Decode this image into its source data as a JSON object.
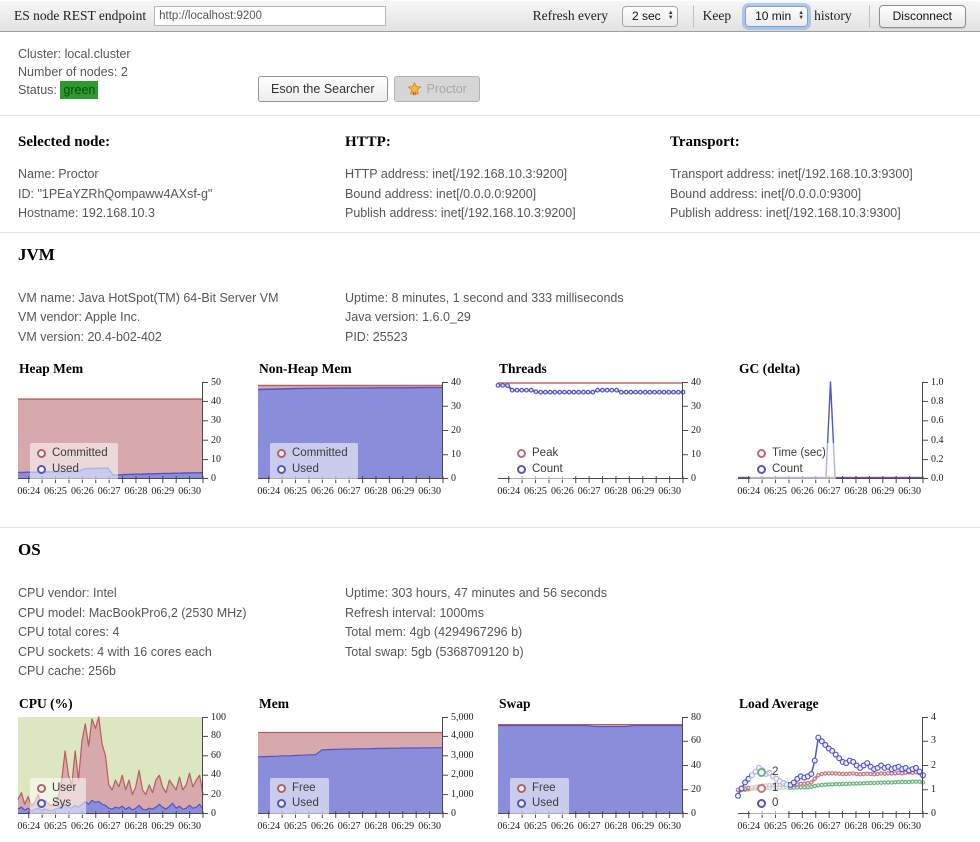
{
  "toolbar": {
    "endpoint_label": "ES node REST endpoint",
    "endpoint_value": "http://localhost:9200",
    "refresh_label": "Refresh every",
    "refresh_value": "2 sec",
    "keep_label": "Keep",
    "keep_value": "10 min",
    "history_label": "history",
    "disconnect_label": "Disconnect"
  },
  "cluster": {
    "cluster_label": "Cluster:",
    "cluster_value": "local.cluster",
    "nodes_label": "Number of nodes:",
    "nodes_value": "2",
    "status_label": "Status:",
    "status_value": "green",
    "status_color": "#2c9a2c"
  },
  "nodes": [
    {
      "label": "Eson the Searcher",
      "selected": false
    },
    {
      "label": "Proctor",
      "selected": true
    }
  ],
  "selected_node": {
    "heading": "Selected node:",
    "lines": [
      "Name: Proctor",
      "ID: \"1PEaYZRhQompaww4AXsf-g\"",
      "Hostname: 192.168.10.3"
    ]
  },
  "http": {
    "heading": "HTTP:",
    "lines": [
      "HTTP address: inet[/192.168.10.3:9200]",
      "Bound address: inet[/0.0.0.0:9200]",
      "Publish address: inet[/192.168.10.3:9200]"
    ]
  },
  "transport": {
    "heading": "Transport:",
    "lines": [
      "Transport address: inet[/192.168.10.3:9300]",
      "Bound address: inet[/0.0.0.0:9300]",
      "Publish address: inet[/192.168.10.3:9300]"
    ]
  },
  "jvm": {
    "heading": "JVM",
    "col1": [
      "VM name: Java HotSpot(TM) 64-Bit Server VM",
      "VM vendor: Apple Inc.",
      "VM version: 20.4-b02-402"
    ],
    "col2": [
      "Uptime: 8 minutes, 1 second and 333 milliseconds",
      "Java version: 1.6.0_29",
      "PID: 25523"
    ]
  },
  "os": {
    "heading": "OS",
    "col1": [
      "CPU vendor: Intel",
      "CPU model: MacBookPro6,2 (2530 MHz)",
      "CPU total cores: 4",
      "CPU sockets: 4 with 16 cores each",
      "CPU cache: 256b"
    ],
    "col2": [
      "Uptime: 303 hours, 47 minutes and 56 seconds",
      "Refresh interval: 1000ms",
      "Total mem: 4gb (4294967296 b)",
      "Total swap: 5gb (5368709120 b)"
    ]
  },
  "chart_data": [
    {
      "id": "heap_mem",
      "title": "Heap Mem",
      "type": "area",
      "ylim": [
        0,
        50
      ],
      "ytick_labels": [
        "0",
        "10",
        "20",
        "30",
        "40",
        "50"
      ],
      "label_clip": 24,
      "x_labels": [
        "06:24",
        "06:25",
        "06:26",
        "06:27",
        "06:28",
        "06:29",
        "06:30"
      ],
      "legend_pos": "bottom-left",
      "grid": false,
      "series": [
        {
          "name": "Committed",
          "color": "#b85c60",
          "fillColor": "#d8a9ac",
          "lw": 1.4,
          "values": [
            41.2,
            41.2
          ]
        },
        {
          "name": "Used",
          "color": "#5055c8",
          "fillColor": "#8a8eda",
          "lw": 1.4,
          "values": [
            3.4,
            3.4,
            3.5,
            3.5,
            3.5,
            3.6,
            3.6,
            3.7,
            3.7,
            3.8,
            3.8,
            3.9,
            4.0,
            4.2,
            5.3,
            5.4,
            5.4,
            5.5,
            5.5,
            5.6,
            2.0,
            2.1,
            2.2,
            2.3,
            2.4,
            2.5,
            2.5,
            2.6,
            2.7,
            2.7,
            2.8,
            2.9,
            2.9,
            3.0,
            3.0,
            3.1,
            3.1,
            3.2,
            3.2,
            3.3
          ]
        }
      ]
    },
    {
      "id": "nonheap_mem",
      "title": "Non-Heap Mem",
      "type": "area",
      "ylim": [
        0,
        40
      ],
      "ytick_labels": [
        "0",
        "10",
        "20",
        "30",
        "40"
      ],
      "label_clip": 24,
      "x_labels": [
        "06:24",
        "06:25",
        "06:26",
        "06:27",
        "06:28",
        "06:29",
        "06:30"
      ],
      "legend_pos": "bottom-left",
      "grid": false,
      "series": [
        {
          "name": "Committed",
          "color": "#b85c60",
          "fillColor": "#d8a9ac",
          "lw": 1.4,
          "values": [
            38.6,
            38.6
          ]
        },
        {
          "name": "Used",
          "color": "#5055c8",
          "fillColor": "#8a8eda",
          "lw": 1.4,
          "values": [
            36.9,
            37.1,
            37.3,
            37.4,
            37.5,
            37.5,
            37.6,
            37.6,
            37.7,
            37.7
          ]
        }
      ]
    },
    {
      "id": "threads",
      "title": "Threads",
      "type": "line",
      "ylim": [
        0,
        40
      ],
      "ytick_labels": [
        "0",
        "10",
        "20",
        "30",
        "40"
      ],
      "label_clip": 24,
      "x_labels": [
        "06:24",
        "06:25",
        "06:26",
        "06:27",
        "06:28",
        "06:29",
        "06:30"
      ],
      "legend_pos": "bottom-left",
      "grid": false,
      "series": [
        {
          "name": "Peak",
          "color": "#c2676c",
          "lw": 1.4,
          "values": [
            39.6,
            39.6
          ]
        },
        {
          "name": "Count",
          "color": "#5055c8",
          "lw": 2.0,
          "markers": true,
          "markerR": 1.8,
          "values": [
            38.6,
            38.6,
            38.5,
            36.6,
            36.6,
            36.6,
            36.6,
            36.6,
            36.0,
            35.8,
            35.8,
            35.8,
            35.8,
            35.8,
            35.8,
            35.8,
            35.8,
            35.8,
            35.8,
            35.8,
            35.8,
            36.6,
            36.6,
            36.6,
            36.6,
            36.6,
            35.8,
            35.8,
            35.8,
            35.8,
            35.8,
            35.8,
            35.8,
            35.8,
            35.8,
            35.8,
            35.8,
            35.8,
            35.8,
            35.8
          ]
        }
      ]
    },
    {
      "id": "gc_delta",
      "title": "GC (delta)",
      "type": "line",
      "ylim": [
        0,
        1
      ],
      "ytick_labels": [
        "0.0",
        "0.2",
        "0.4",
        "0.6",
        "0.8",
        "1.0"
      ],
      "label_clip": 9,
      "x_labels": [
        "06:24",
        "06:25",
        "06:26",
        "06:27",
        "06:28",
        "06:29",
        "06:30"
      ],
      "legend_pos": "bottom-left",
      "grid": false,
      "series": [
        {
          "name": "Time (sec)",
          "color": "#c2676c",
          "lw": 1.4,
          "values": [
            0.015,
            0.015
          ]
        },
        {
          "name": "Count",
          "color": "#5055c8",
          "lw": 1.4,
          "values": [
            0.01,
            0.01,
            0.01,
            0.01,
            0.01,
            0.01,
            0.01,
            0.01,
            0.01,
            0.01,
            0.01,
            0.01,
            0.01,
            0.01,
            0.01,
            0.01,
            0.01,
            0.01,
            0.01,
            0.01,
            1.0,
            0.01,
            0.01,
            0.01,
            0.01,
            0.01,
            0.01,
            0.01,
            0.01,
            0.01,
            0.01,
            0.01,
            0.01,
            0.01,
            0.01,
            0.01,
            0.01,
            0.01,
            0.01,
            0.01,
            0.01
          ]
        }
      ]
    },
    {
      "id": "cpu",
      "title": "CPU (%)",
      "type": "area",
      "plot_bg": "#dce6c1",
      "ylim": [
        0,
        100
      ],
      "ytick_labels": [
        "0",
        "20",
        "40",
        "60",
        "80",
        "100"
      ],
      "label_clip": 13,
      "x_labels": [
        "06:24",
        "06:25",
        "06:26",
        "06:27",
        "06:28",
        "06:29",
        "06:30"
      ],
      "legend_pos": "bottom-left",
      "grid": false,
      "series": [
        {
          "name": "User",
          "color": "#b85c60",
          "fillColor": "#d8a9ac",
          "lw": 1.2,
          "values": [
            15,
            22,
            10,
            18,
            8,
            12,
            20,
            9,
            14,
            11,
            8,
            12,
            18,
            35,
            65,
            40,
            30,
            65,
            35,
            75,
            93,
            70,
            98,
            88,
            100,
            72,
            60,
            30,
            25,
            35,
            28,
            40,
            25,
            35,
            20,
            28,
            45,
            25,
            20,
            30,
            22,
            35,
            40,
            28,
            22,
            35,
            30,
            25,
            38,
            25,
            30,
            42,
            28,
            35,
            40,
            20
          ]
        },
        {
          "name": "Sys",
          "color": "#5055c8",
          "fillColor": "#8a8eda",
          "lw": 1.2,
          "values": [
            5,
            7,
            4,
            6,
            3,
            5,
            6,
            4,
            5,
            4,
            3,
            5,
            6,
            8,
            10,
            7,
            6,
            9,
            7,
            10,
            13,
            10,
            14,
            12,
            13,
            10,
            9,
            6,
            5,
            7,
            6,
            8,
            5,
            7,
            4,
            6,
            9,
            5,
            4,
            6,
            5,
            7,
            10,
            7,
            5,
            8,
            11,
            6,
            8,
            5,
            6,
            9,
            6,
            7,
            10,
            5
          ]
        }
      ]
    },
    {
      "id": "mem",
      "title": "Mem",
      "type": "area",
      "ylim": [
        0,
        5000
      ],
      "ytick_labels": [
        "0",
        "1,000",
        "2,000",
        "3,000",
        "4,000",
        "5,000"
      ],
      "label_clip": 10,
      "x_labels": [
        "06:24",
        "06:25",
        "06:26",
        "06:27",
        "06:28",
        "06:29",
        "06:30"
      ],
      "legend_pos": "bottom-left",
      "grid": false,
      "series": [
        {
          "name": "Free",
          "color": "#b85c60",
          "fillColor": "#d8a9ac",
          "lw": 1.2,
          "values": [
            4200,
            4200
          ]
        },
        {
          "name": "Used",
          "color": "#5055c8",
          "fillColor": "#8a8eda",
          "lw": 1.2,
          "values": [
            2950,
            2960,
            2970,
            2980,
            3000,
            3000,
            3020,
            3030,
            3050,
            3050,
            3300,
            3320,
            3330,
            3340,
            3350,
            3350,
            3360,
            3360,
            3370,
            3380,
            3380,
            3390,
            3390,
            3400,
            3400,
            3400,
            3410,
            3410,
            3420,
            3420
          ]
        }
      ]
    },
    {
      "id": "swap",
      "title": "Swap",
      "type": "area",
      "ylim": [
        0,
        80
      ],
      "ytick_labels": [
        "0",
        "20",
        "40",
        "60",
        "80"
      ],
      "label_clip": 24,
      "x_labels": [
        "06:24",
        "06:25",
        "06:26",
        "06:27",
        "06:28",
        "06:29",
        "06:30"
      ],
      "legend_pos": "bottom-left",
      "grid": false,
      "series": [
        {
          "name": "Free",
          "color": "#b85c60",
          "fillColor": "#d8a9ac",
          "lw": 1.0,
          "values": [
            73.8,
            73.8
          ]
        },
        {
          "name": "Used",
          "color": "#5055c8",
          "fillColor": "#8a8eda",
          "lw": 1.2,
          "values": [
            73,
            73,
            73,
            73,
            73,
            73,
            73,
            73,
            73,
            73,
            72.2,
            72.2,
            72.2,
            72.2,
            73,
            73,
            73,
            73,
            73,
            73
          ]
        }
      ]
    },
    {
      "id": "load_avg",
      "title": "Load Average",
      "type": "line",
      "ylim": [
        0,
        4
      ],
      "ytick_labels": [
        "0",
        "1",
        "2",
        "3",
        "4"
      ],
      "label_clip": 24,
      "x_labels": [
        "06:24",
        "06:25",
        "06:26",
        "06:27",
        "06:28",
        "06:29",
        "06:30"
      ],
      "legend_pos": "bottom-left",
      "grid": false,
      "series": [
        {
          "name": "2",
          "color": "#6ab583",
          "lw": 2.6,
          "markers": true,
          "markerR": 1.6,
          "values": [
            0.98,
            1.0,
            1.0,
            1.02,
            1.03,
            1.04,
            1.05,
            1.06,
            1.06,
            1.07,
            1.07,
            1.08,
            1.08,
            1.08,
            1.08,
            1.08,
            1.09,
            1.09,
            1.1,
            1.1,
            1.1,
            1.12,
            1.15,
            1.18,
            1.2,
            1.21,
            1.22,
            1.22,
            1.23,
            1.23,
            1.24,
            1.24,
            1.25,
            1.25,
            1.26,
            1.26,
            1.27,
            1.27,
            1.28,
            1.28,
            1.29,
            1.29,
            1.3,
            1.3,
            1.3,
            1.31,
            1.31,
            1.32,
            1.32,
            1.32,
            1.33,
            1.33,
            1.33,
            1.3
          ]
        },
        {
          "name": "1",
          "color": "#c07a80",
          "lw": 2.6,
          "markers": true,
          "markerR": 1.6,
          "values": [
            1.0,
            1.02,
            1.05,
            1.08,
            1.1,
            1.12,
            1.15,
            1.17,
            1.18,
            1.2,
            1.2,
            1.2,
            1.2,
            1.2,
            1.2,
            1.2,
            1.2,
            1.22,
            1.25,
            1.25,
            1.28,
            1.3,
            1.45,
            1.6,
            1.65,
            1.67,
            1.68,
            1.68,
            1.67,
            1.66,
            1.65,
            1.65,
            1.66,
            1.67,
            1.65,
            1.64,
            1.65,
            1.66,
            1.65,
            1.64,
            1.65,
            1.67,
            1.66,
            1.68,
            1.67,
            1.68,
            1.7,
            1.68,
            1.7,
            1.72,
            1.7,
            1.72,
            1.68,
            1.55
          ]
        },
        {
          "name": "0",
          "color": "#5055c8",
          "lw": 1.5,
          "markers": true,
          "markerR": 2.4,
          "values": [
            0.75,
            1.05,
            1.3,
            1.45,
            1.6,
            1.75,
            1.9,
            1.8,
            1.65,
            1.7,
            1.55,
            1.45,
            1.35,
            1.28,
            1.22,
            1.2,
            1.3,
            1.45,
            1.55,
            1.5,
            1.55,
            1.65,
            2.2,
            3.15,
            3.0,
            2.85,
            2.7,
            2.6,
            2.45,
            2.3,
            2.15,
            2.1,
            2.2,
            2.15,
            2.0,
            1.9,
            2.0,
            2.1,
            1.95,
            1.85,
            1.9,
            2.0,
            1.9,
            1.95,
            1.85,
            1.9,
            1.95,
            1.85,
            1.9,
            1.8,
            1.85,
            1.9,
            1.75,
            1.6
          ]
        }
      ]
    }
  ]
}
